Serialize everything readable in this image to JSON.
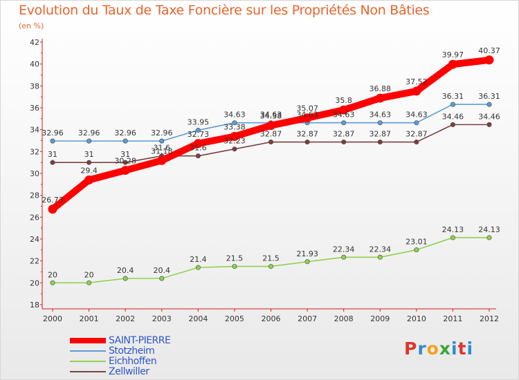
{
  "title": "Evolution du Taux de Taxe Foncière sur les Propriétés Non Bâties",
  "unit_label": "(en %)",
  "logo": {
    "text": "Proxiti",
    "letters": [
      "P",
      "r",
      "o",
      "x",
      "i",
      "t",
      "i"
    ]
  },
  "chart_data": {
    "type": "line",
    "title": "Evolution du Taux de Taxe Foncière sur les Propriétés Non Bâties",
    "xlabel": "",
    "ylabel": "(en %)",
    "ylim": [
      18,
      42
    ],
    "ytick_step": 2,
    "grid": false,
    "legend_position": "bottom-left",
    "x": [
      "2000",
      "2001",
      "2002",
      "2003",
      "2004",
      "2005",
      "2006",
      "2007",
      "2008",
      "2009",
      "2010",
      "2011",
      "2012"
    ],
    "series": [
      {
        "name": "SAINT-PIERRE",
        "color": "#ff0000",
        "highlight": true,
        "values": [
          26.73,
          29.4,
          30.28,
          31.18,
          32.73,
          33.38,
          34.38,
          35.07,
          35.8,
          36.88,
          37.52,
          39.97,
          40.37
        ],
        "labels": [
          "26.73",
          "29.4",
          "30.28",
          "31.18",
          "32.73",
          "33.38",
          "34.38",
          "35.07",
          "35.8",
          "36.88",
          "37.52",
          "39.97",
          "40.37"
        ]
      },
      {
        "name": "Stotzheim",
        "color": "#5b9bd5",
        "highlight": false,
        "values": [
          32.96,
          32.96,
          32.96,
          32.96,
          33.95,
          34.63,
          34.63,
          34.63,
          34.63,
          34.63,
          34.63,
          36.31,
          36.31
        ],
        "labels": [
          "32.96",
          "32.96",
          "32.96",
          "32.96",
          "33.95",
          "34.63",
          "34.63",
          "34.63",
          "34.63",
          "34.63",
          "34.63",
          "36.31",
          "36.31"
        ]
      },
      {
        "name": "Eichhoffen",
        "color": "#92d050",
        "highlight": false,
        "values": [
          20,
          20,
          20.4,
          20.4,
          21.4,
          21.5,
          21.5,
          21.93,
          22.34,
          22.34,
          23.01,
          24.13,
          24.13
        ],
        "labels": [
          "20",
          "20",
          "20.4",
          "20.4",
          "21.4",
          "21.5",
          "21.5",
          "21.93",
          "22.34",
          "22.34",
          "23.01",
          "24.13",
          "24.13"
        ]
      },
      {
        "name": "Zellwiller",
        "color": "#7b3f3f",
        "highlight": false,
        "values": [
          31,
          31,
          31,
          31.6,
          31.6,
          32.23,
          32.87,
          32.87,
          32.87,
          32.87,
          32.87,
          34.46,
          34.46
        ],
        "labels": [
          "31",
          "31",
          "31",
          "31.6",
          "31.6",
          "32.23",
          "32.87",
          "32.87",
          "32.87",
          "32.87",
          "32.87",
          "34.46",
          "34.46"
        ]
      }
    ]
  }
}
